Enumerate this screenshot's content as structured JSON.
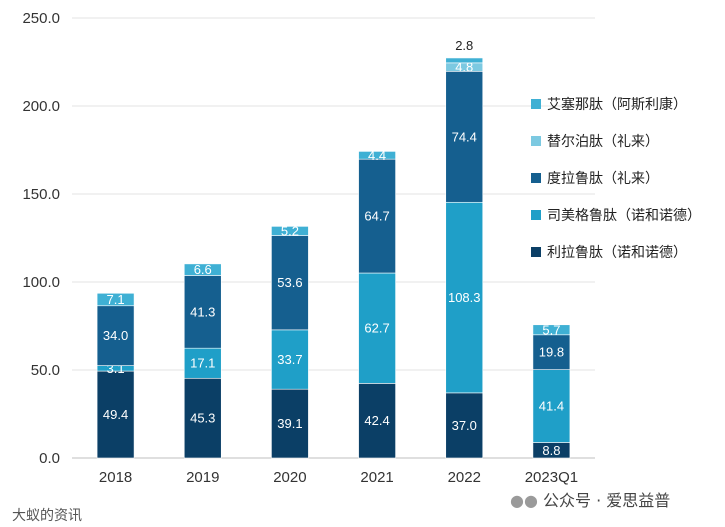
{
  "chart_data": {
    "type": "bar",
    "stacked": true,
    "title": "",
    "xlabel": "",
    "ylabel": "",
    "categories": [
      "2018",
      "2019",
      "2020",
      "2021",
      "2022",
      "2023Q1"
    ],
    "ylim": [
      0,
      250
    ],
    "yticks": [
      "0.0",
      "50.0",
      "100.0",
      "150.0",
      "200.0",
      "250.0"
    ],
    "series": [
      {
        "name": "利拉鲁肽（诺和诺德）",
        "color": "#0b3f66",
        "values": [
          49.4,
          45.3,
          39.1,
          42.4,
          37.0,
          8.8
        ]
      },
      {
        "name": "司美格鲁肽（诺和诺德）",
        "color": "#1f9fc8",
        "values": [
          3.1,
          17.1,
          33.7,
          62.7,
          108.3,
          41.4
        ]
      },
      {
        "name": "度拉鲁肽（礼来）",
        "color": "#155f8f",
        "values": [
          34.0,
          41.3,
          53.6,
          64.7,
          74.4,
          19.8
        ]
      },
      {
        "name": "替尔泊肽（礼来）",
        "color": "#7cc9e1",
        "values": [
          null,
          null,
          null,
          null,
          4.8,
          null
        ]
      },
      {
        "name": "艾塞那肽（阿斯利康）",
        "color": "#3fb0d4",
        "values": [
          7.1,
          6.6,
          5.2,
          4.4,
          2.8,
          5.7
        ]
      }
    ],
    "legend_order": [
      4,
      3,
      2,
      1,
      0
    ],
    "legend_position": "right",
    "grid": true
  },
  "footer": {
    "left_mark": "大蚁的资讯",
    "right_mark": "公众号 · 爱思益普"
  }
}
